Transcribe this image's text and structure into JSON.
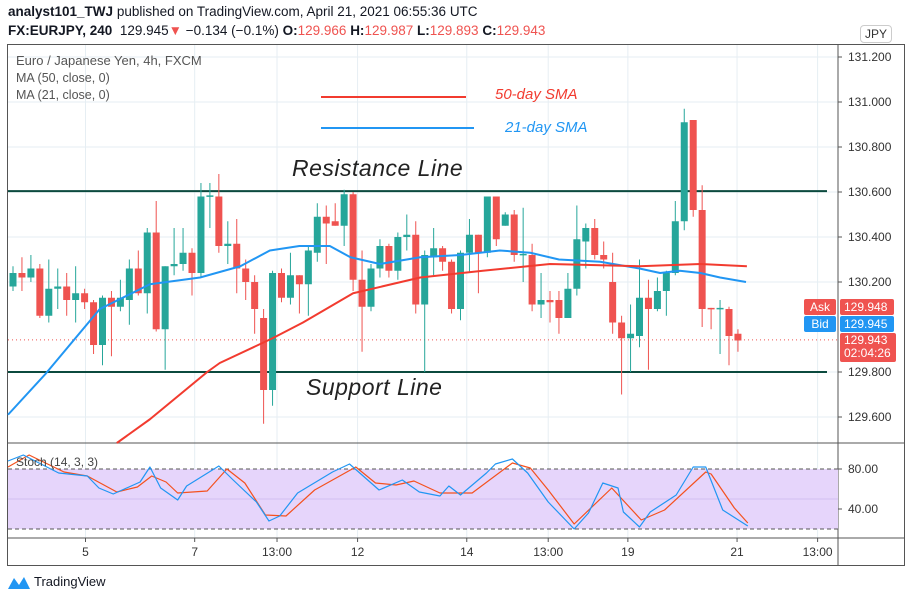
{
  "header": {
    "author": "analyst101_TWJ",
    "published": "published on TradingView.com, April 21, 2021 06:55:36 UTC",
    "symbol": "FX:EURJPY, 240",
    "last": "129.945",
    "change": "−0.134 (−0.1%)",
    "o_label": "O:",
    "o": "129.966",
    "h_label": "H:",
    "h": "129.987",
    "l_label": "L:",
    "l": "129.893",
    "c_label": "C:",
    "c": "129.943"
  },
  "legend": {
    "title": "Euro / Japanese Yen, 4h, FXCM",
    "ma50": "MA (50, close, 0)",
    "ma21": "MA (21, close, 0)",
    "stoch": "Stoch (14, 3, 3)"
  },
  "annotations": {
    "sma50": "50-day SMA",
    "sma21": "21-day SMA",
    "resistance": "Resistance Line",
    "support": "Support Line"
  },
  "currency": "JPY",
  "price_axis": [
    {
      "v": 131.2,
      "t": "131.200"
    },
    {
      "v": 131.0,
      "t": "131.000"
    },
    {
      "v": 130.8,
      "t": "130.800"
    },
    {
      "v": 130.6,
      "t": "130.600"
    },
    {
      "v": 130.4,
      "t": "130.400"
    },
    {
      "v": 130.2,
      "t": "130.200"
    },
    {
      "v": 129.8,
      "t": "129.800"
    },
    {
      "v": 129.6,
      "t": "129.600"
    }
  ],
  "stoch_axis": [
    {
      "v": 80,
      "t": "80.00"
    },
    {
      "v": 40,
      "t": "40.00"
    }
  ],
  "time_axis": [
    {
      "i": 8.1,
      "t": "5"
    },
    {
      "i": 20.3,
      "t": "7"
    },
    {
      "i": 29.5,
      "t": "13:00"
    },
    {
      "i": 38.5,
      "t": "12"
    },
    {
      "i": 50.7,
      "t": "14"
    },
    {
      "i": 59.8,
      "t": "13:00"
    },
    {
      "i": 68.7,
      "t": "19"
    },
    {
      "i": 80.9,
      "t": "21"
    },
    {
      "i": 89.9,
      "t": "13:00"
    }
  ],
  "tags": {
    "ask_label": "Ask",
    "ask": "129.948",
    "bid_label": "Bid",
    "bid": "129.945",
    "last": "129.943",
    "countdown": "02:04:26"
  },
  "levels": {
    "resistance": 130.604,
    "support": 129.8,
    "last": 129.943
  },
  "colors": {
    "up": "#26a69a",
    "down": "#ef5350",
    "ma50": "#f23b2f",
    "ma21": "#2196f3",
    "level": "#0b4a3e",
    "stochK": "#2196f3",
    "stochD": "#f4511e",
    "band": "#e6d5fb"
  },
  "candles": [
    [
      130.18,
      130.27,
      130.16,
      130.24
    ],
    [
      130.24,
      130.31,
      130.16,
      130.22
    ],
    [
      130.22,
      130.32,
      130.2,
      130.26
    ],
    [
      130.26,
      130.28,
      130.04,
      130.05
    ],
    [
      130.05,
      130.3,
      130.02,
      130.17
    ],
    [
      130.17,
      130.26,
      130.08,
      130.18
    ],
    [
      130.18,
      130.24,
      130.05,
      130.12
    ],
    [
      130.12,
      130.27,
      130.02,
      130.15
    ],
    [
      130.15,
      130.17,
      130.08,
      130.11
    ],
    [
      130.11,
      130.12,
      129.88,
      129.92
    ],
    [
      129.92,
      130.14,
      129.83,
      130.13
    ],
    [
      130.13,
      130.16,
      129.87,
      130.09
    ],
    [
      130.09,
      130.21,
      130.07,
      130.13
    ],
    [
      130.12,
      130.3,
      130.01,
      130.26
    ],
    [
      130.26,
      130.34,
      130.14,
      130.15
    ],
    [
      130.15,
      130.44,
      130.06,
      130.42
    ],
    [
      130.42,
      130.56,
      129.98,
      129.99
    ],
    [
      129.99,
      130.27,
      129.81,
      130.27
    ],
    [
      130.27,
      130.44,
      130.23,
      130.28
    ],
    [
      130.28,
      130.44,
      130.25,
      130.33
    ],
    [
      130.33,
      130.35,
      130.14,
      130.24
    ],
    [
      130.24,
      130.64,
      130.22,
      130.58
    ],
    [
      130.58,
      130.64,
      130.44,
      130.585
    ],
    [
      130.58,
      130.68,
      130.33,
      130.36
    ],
    [
      130.36,
      130.47,
      130.28,
      130.37
    ],
    [
      130.37,
      130.48,
      130.15,
      130.26
    ],
    [
      130.26,
      130.3,
      130.12,
      130.2
    ],
    [
      130.2,
      130.23,
      129.97,
      130.08
    ],
    [
      130.04,
      130.08,
      129.57,
      129.72
    ],
    [
      129.72,
      130.25,
      129.65,
      130.24
    ],
    [
      130.24,
      130.26,
      130.11,
      130.13
    ],
    [
      130.13,
      130.33,
      130.1,
      130.23
    ],
    [
      130.23,
      130.23,
      130.06,
      130.19
    ],
    [
      130.19,
      130.36,
      130.05,
      130.34
    ],
    [
      130.33,
      130.55,
      130.29,
      130.49
    ],
    [
      130.49,
      130.54,
      130.28,
      130.46
    ],
    [
      130.47,
      130.55,
      130.45,
      130.45
    ],
    [
      130.45,
      130.61,
      130.36,
      130.59
    ],
    [
      130.59,
      130.6,
      130.16,
      130.21
    ],
    [
      130.21,
      130.34,
      129.89,
      130.09
    ],
    [
      130.09,
      130.28,
      130.07,
      130.26
    ],
    [
      130.26,
      130.39,
      130.22,
      130.36
    ],
    [
      130.36,
      130.37,
      130.22,
      130.25
    ],
    [
      130.25,
      130.42,
      130.21,
      130.4
    ],
    [
      130.4,
      130.5,
      130.34,
      130.41
    ],
    [
      130.41,
      130.47,
      130.06,
      130.1
    ],
    [
      130.1,
      130.34,
      129.8,
      130.32
    ],
    [
      130.31,
      130.44,
      130.23,
      130.35
    ],
    [
      130.35,
      130.36,
      130.25,
      130.29
    ],
    [
      130.29,
      130.3,
      130.06,
      130.08
    ],
    [
      130.08,
      130.34,
      130.03,
      130.33
    ],
    [
      130.33,
      130.48,
      130.24,
      130.41
    ],
    [
      130.41,
      130.41,
      130.15,
      130.33
    ],
    [
      130.33,
      130.58,
      130.31,
      130.58
    ],
    [
      130.58,
      130.58,
      130.36,
      130.39
    ],
    [
      130.45,
      130.51,
      130.45,
      130.5
    ],
    [
      130.5,
      130.52,
      130.29,
      130.32
    ],
    [
      130.32,
      130.53,
      130.2,
      130.325
    ],
    [
      130.32,
      130.37,
      130.07,
      130.1
    ],
    [
      130.1,
      130.24,
      130.04,
      130.12
    ],
    [
      130.12,
      130.16,
      130.02,
      130.11
    ],
    [
      130.12,
      130.16,
      129.97,
      130.04
    ],
    [
      130.04,
      130.24,
      130.04,
      130.17
    ],
    [
      130.17,
      130.54,
      130.14,
      130.39
    ],
    [
      130.38,
      130.46,
      130.26,
      130.44
    ],
    [
      130.44,
      130.48,
      130.3,
      130.32
    ],
    [
      130.32,
      130.38,
      130.26,
      130.3
    ],
    [
      130.2,
      130.33,
      129.97,
      130.02
    ],
    [
      130.02,
      130.05,
      129.7,
      129.95
    ],
    [
      129.95,
      130.1,
      129.8,
      129.97
    ],
    [
      129.96,
      130.3,
      129.91,
      130.13
    ],
    [
      130.13,
      130.21,
      129.81,
      130.08
    ],
    [
      130.08,
      130.22,
      130.07,
      130.16
    ],
    [
      130.16,
      130.25,
      130.05,
      130.24
    ],
    [
      130.24,
      130.56,
      130.23,
      130.47
    ],
    [
      130.47,
      130.97,
      130.43,
      130.91
    ],
    [
      130.92,
      130.92,
      130.49,
      130.52
    ],
    [
      130.52,
      130.63,
      130.0,
      130.08
    ],
    [
      130.085,
      130.085,
      129.99,
      130.08
    ],
    [
      130.08,
      130.12,
      129.88,
      130.085
    ],
    [
      130.08,
      130.09,
      129.83,
      129.96
    ],
    [
      129.97,
      129.99,
      129.89,
      129.94
    ]
  ],
  "ma21": [
    [
      -0.7,
      129.61
    ],
    [
      3.6,
      129.79
    ],
    [
      9.7,
      130.08
    ],
    [
      15.3,
      130.19
    ],
    [
      20.9,
      130.22
    ],
    [
      25.4,
      130.27
    ],
    [
      28.7,
      130.34
    ],
    [
      32,
      130.36
    ],
    [
      35.4,
      130.36
    ],
    [
      37.7,
      130.31
    ],
    [
      41,
      130.28
    ],
    [
      45.5,
      130.31
    ],
    [
      50,
      130.32
    ],
    [
      54.4,
      130.34
    ],
    [
      57.8,
      130.33
    ],
    [
      61,
      130.3
    ],
    [
      65.6,
      130.29
    ],
    [
      70,
      130.26
    ],
    [
      72.3,
      130.24
    ],
    [
      74.5,
      130.25
    ],
    [
      76.8,
      130.24
    ],
    [
      79,
      130.22
    ],
    [
      81.9,
      130.2
    ]
  ],
  "ma50": [
    [
      11.6,
      129.45
    ],
    [
      15.3,
      129.59
    ],
    [
      21.7,
      129.8
    ],
    [
      23.1,
      129.84
    ],
    [
      29,
      129.95
    ],
    [
      32.4,
      130.02
    ],
    [
      38,
      130.15
    ],
    [
      45.5,
      130.22
    ],
    [
      52.5,
      130.25
    ],
    [
      60,
      130.28
    ],
    [
      70,
      130.27
    ],
    [
      76.8,
      130.28
    ],
    [
      82,
      130.27
    ]
  ],
  "stochK": [
    [
      -0.8,
      88
    ],
    [
      1.15,
      94
    ],
    [
      5.1,
      76
    ],
    [
      8.3,
      73
    ],
    [
      9.6,
      61
    ],
    [
      11.2,
      55
    ],
    [
      14.2,
      67
    ],
    [
      15.3,
      82
    ],
    [
      16.5,
      61
    ],
    [
      18.4,
      49
    ],
    [
      19.4,
      63
    ],
    [
      23,
      83
    ],
    [
      24.6,
      69
    ],
    [
      27.2,
      47
    ],
    [
      28.6,
      28
    ],
    [
      29.8,
      33
    ],
    [
      31.8,
      56
    ],
    [
      35.7,
      77
    ],
    [
      37.6,
      85
    ],
    [
      40.9,
      59
    ],
    [
      43.5,
      69
    ],
    [
      45.4,
      57
    ],
    [
      47.7,
      53
    ],
    [
      48.7,
      63
    ],
    [
      50,
      54
    ],
    [
      52.9,
      76
    ],
    [
      53.9,
      85
    ],
    [
      55.8,
      90
    ],
    [
      57.5,
      76
    ],
    [
      59.8,
      47
    ],
    [
      62.7,
      20
    ],
    [
      64.3,
      36
    ],
    [
      65.9,
      66
    ],
    [
      67.6,
      61
    ],
    [
      68.2,
      37
    ],
    [
      70,
      22
    ],
    [
      71.2,
      37
    ],
    [
      74.1,
      54
    ],
    [
      76,
      82
    ],
    [
      77.4,
      82
    ],
    [
      79.3,
      39
    ],
    [
      82.1,
      23
    ]
  ],
  "stochD": [
    [
      -0.8,
      82
    ],
    [
      1.8,
      94
    ],
    [
      5.7,
      77
    ],
    [
      8.3,
      73
    ],
    [
      11.6,
      57
    ],
    [
      13.9,
      62
    ],
    [
      15.5,
      73
    ],
    [
      17.1,
      67
    ],
    [
      18.4,
      56
    ],
    [
      21.7,
      58
    ],
    [
      23.9,
      80
    ],
    [
      25.9,
      66
    ],
    [
      28.2,
      34
    ],
    [
      30.5,
      33
    ],
    [
      33.7,
      59
    ],
    [
      38.3,
      82
    ],
    [
      40.5,
      66
    ],
    [
      42.8,
      64
    ],
    [
      44.8,
      68
    ],
    [
      47.7,
      56
    ],
    [
      51.3,
      56
    ],
    [
      55.8,
      86
    ],
    [
      57.8,
      81
    ],
    [
      59.8,
      59
    ],
    [
      62.7,
      25
    ],
    [
      66.9,
      61
    ],
    [
      70.2,
      29
    ],
    [
      72.8,
      39
    ],
    [
      77.4,
      77
    ],
    [
      78,
      75
    ],
    [
      80.6,
      41
    ],
    [
      82.1,
      26
    ]
  ],
  "brand": "TradingView"
}
